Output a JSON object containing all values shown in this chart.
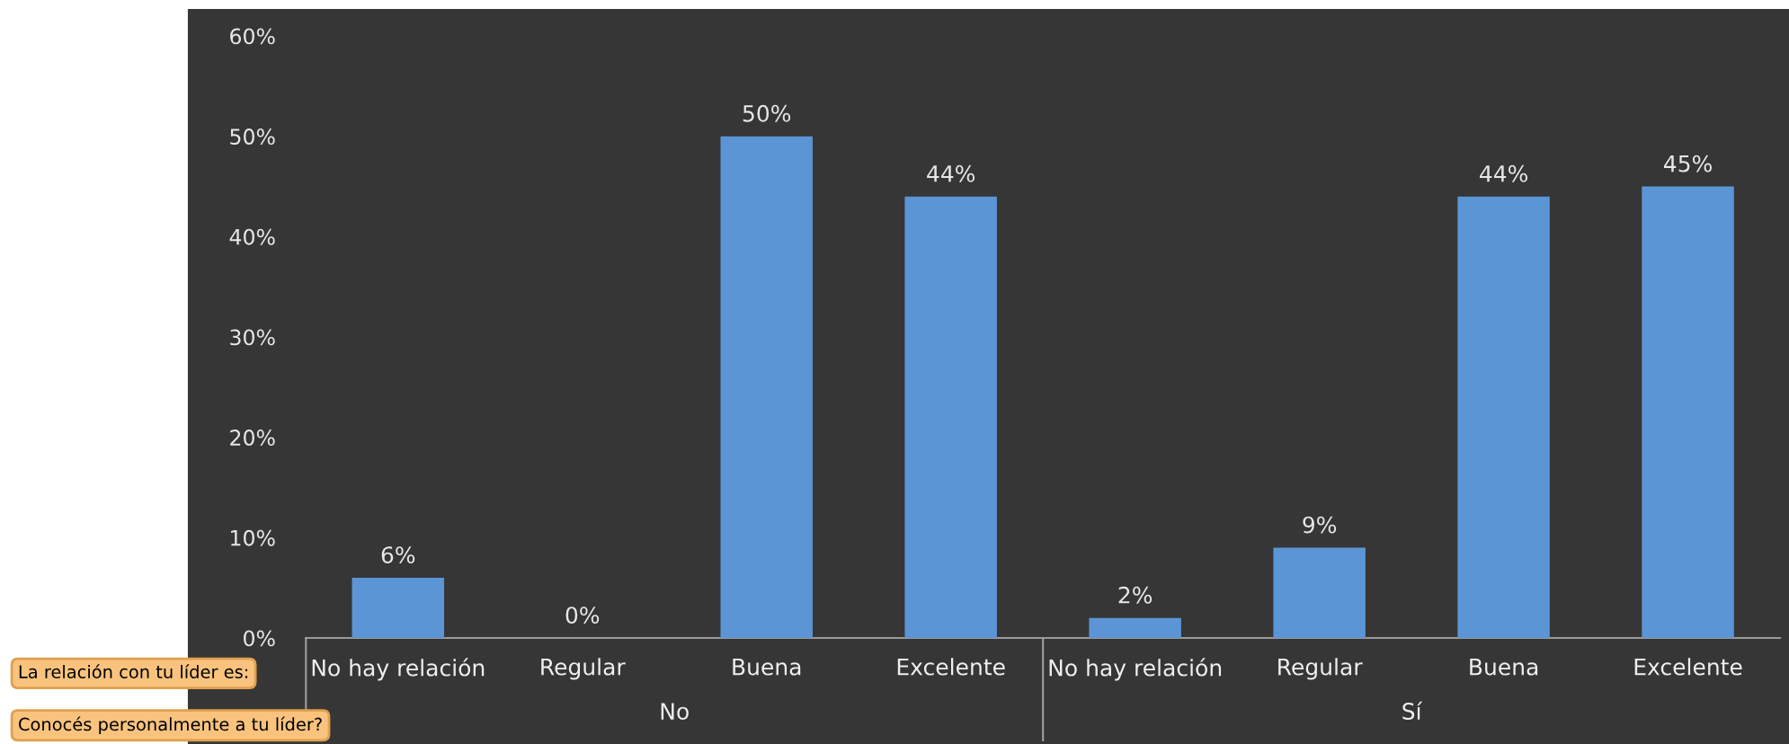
{
  "chart_data": {
    "type": "bar",
    "categories": [
      "No hay relación",
      "Regular",
      "Buena",
      "Excelente",
      "No hay relación",
      "Regular",
      "Buena",
      "Excelente"
    ],
    "values": [
      6,
      0,
      50,
      44,
      2,
      9,
      44,
      45
    ],
    "value_labels": [
      "6%",
      "0%",
      "50%",
      "44%",
      "2%",
      "9%",
      "44%",
      "45%"
    ],
    "color": "#5b95d6",
    "ylim": [
      0,
      60
    ],
    "yticks": [
      {
        "value": 0,
        "label": "0%"
      },
      {
        "value": 10,
        "label": "10%"
      },
      {
        "value": 20,
        "label": "20%"
      },
      {
        "value": 30,
        "label": "30%"
      },
      {
        "value": 40,
        "label": "40%"
      },
      {
        "value": 50,
        "label": "50%"
      },
      {
        "value": 60,
        "label": "60%"
      }
    ],
    "grid": false,
    "annotations": [
      "La relación con tu líder es:",
      "Conocés personalmente a tu líder?",
      "No",
      "Sí"
    ]
  }
}
